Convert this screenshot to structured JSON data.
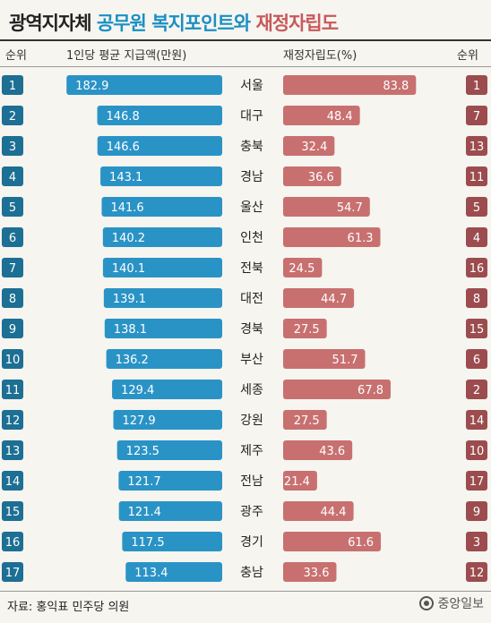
{
  "title": {
    "part1": "광역지자체",
    "part2": "공무원 복지포인트와",
    "part3": "재정자립도"
  },
  "headers": {
    "rank_left": "순위",
    "welfare": "1인당 평균 지급액(만원)",
    "fiscal": "재정자립도(%)",
    "rank_right": "순위"
  },
  "colors": {
    "welfare_bar": "#2a93c6",
    "welfare_rank": "#1d6f94",
    "fiscal_bar": "#c87070",
    "fiscal_rank": "#9c4c4e",
    "background": "#f6f5f0"
  },
  "chart_data": {
    "type": "bar",
    "categories": [
      "서울",
      "대구",
      "충북",
      "경남",
      "울산",
      "인천",
      "전북",
      "대전",
      "경북",
      "부산",
      "세종",
      "강원",
      "제주",
      "전남",
      "광주",
      "경기",
      "충남"
    ],
    "welfare_rank": [
      1,
      2,
      3,
      4,
      5,
      6,
      7,
      8,
      9,
      10,
      11,
      12,
      13,
      14,
      15,
      16,
      17
    ],
    "series": [
      {
        "values": [
          182.9,
          146.8,
          146.6,
          143.1,
          141.6,
          140.2,
          140.1,
          139.1,
          138.1,
          136.2,
          129.4,
          127.9,
          123.5,
          121.7,
          121.4,
          117.5,
          113.4
        ]
      },
      {
        "values": [
          83.8,
          48.4,
          32.4,
          36.6,
          54.7,
          61.3,
          24.5,
          44.7,
          27.5,
          51.7,
          67.8,
          27.5,
          43.6,
          21.4,
          44.4,
          61.6,
          33.6
        ]
      }
    ],
    "fiscal_rank": [
      1,
      7,
      13,
      11,
      5,
      4,
      16,
      8,
      15,
      6,
      2,
      14,
      10,
      17,
      9,
      3,
      12
    ]
  },
  "footer": {
    "source": "자료: 홍익표 민주당 의원",
    "logo": "중앙일보"
  }
}
